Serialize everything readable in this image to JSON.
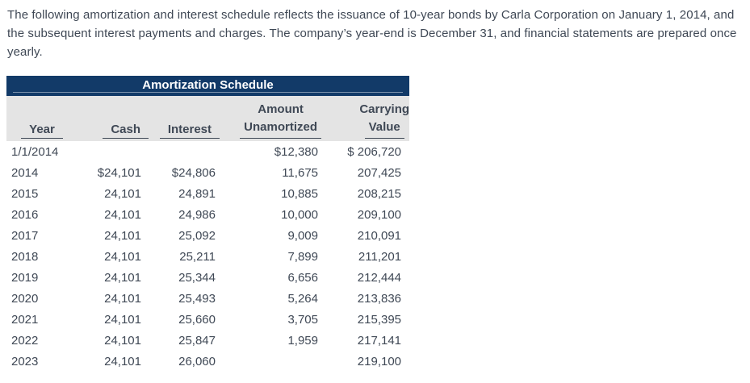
{
  "intro": {
    "text": "The following amortization and interest schedule reflects the issuance of 10-year bonds by Carla Corporation on January 1, 2014, and the subsequent interest payments and charges. The company’s year-end is December 31, and financial statements are prepared once yearly."
  },
  "table": {
    "title": "Amortization Schedule",
    "headers": {
      "year": "Year",
      "cash": "Cash",
      "interest": "Interest",
      "amount_top": "Amount",
      "amount_bottom": "Unamortized",
      "carrying_top": "Carrying",
      "carrying_bottom": "Value"
    },
    "rows": [
      [
        "1/1/2014",
        "",
        "",
        "$12,380",
        "$ 206,720"
      ],
      [
        "2014",
        "$24,101",
        "$24,806",
        "11,675",
        "207,425"
      ],
      [
        "2015",
        "24,101",
        "24,891",
        "10,885",
        "208,215"
      ],
      [
        "2016",
        "24,101",
        "24,986",
        "10,000",
        "209,100"
      ],
      [
        "2017",
        "24,101",
        "25,092",
        "9,009",
        "210,091"
      ],
      [
        "2018",
        "24,101",
        "25,211",
        "7,899",
        "211,201"
      ],
      [
        "2019",
        "24,101",
        "25,344",
        "6,656",
        "212,444"
      ],
      [
        "2020",
        "24,101",
        "25,493",
        "5,264",
        "213,836"
      ],
      [
        "2021",
        "24,101",
        "25,660",
        "3,705",
        "215,395"
      ],
      [
        "2022",
        "24,101",
        "25,847",
        "1,959",
        "217,141"
      ],
      [
        "2023",
        "24,101",
        "26,060",
        "",
        "219,100"
      ]
    ],
    "colors": {
      "title_bar_bg": "#123a68",
      "title_bar_text": "#ffffff",
      "column_header_bg": "#e4e4e4",
      "body_text": "#3f4855"
    }
  }
}
